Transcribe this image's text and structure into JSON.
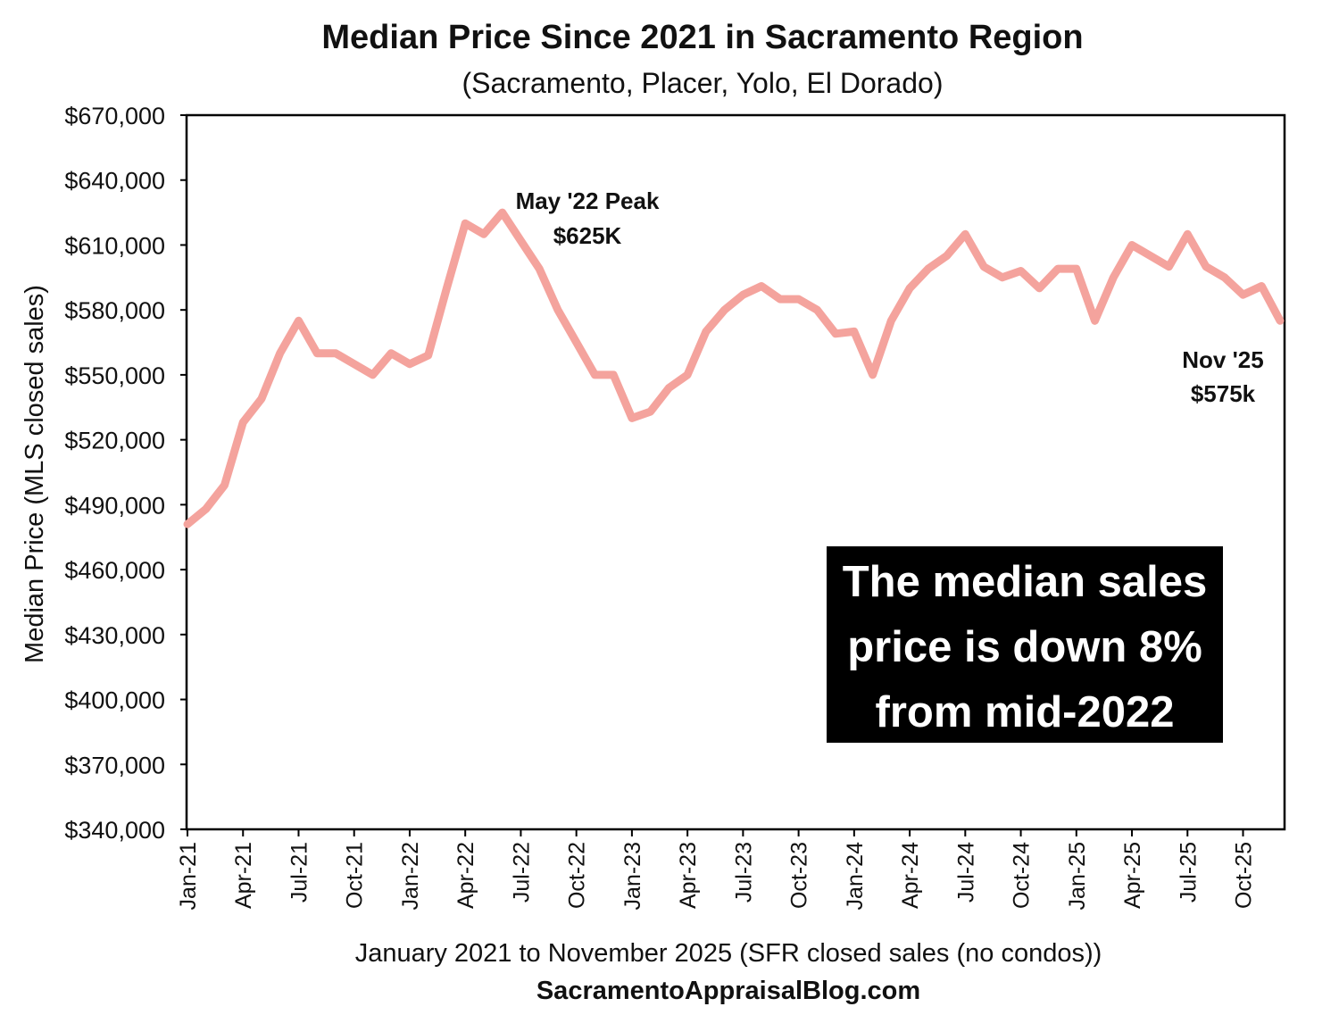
{
  "chart_data": {
    "type": "line",
    "title": "Median Price Since 2021 in Sacramento Region",
    "subtitle": "(Sacramento, Placer,  Yolo, El Dorado)",
    "ylabel": "Median Price (MLS closed sales)",
    "xlabel": "January 2021 to November 2025 (SFR closed sales (no condos))",
    "source": "SacramentoAppraisalBlog.com",
    "ylim": [
      340000,
      670000
    ],
    "y_ticks": [
      "$340,000",
      "$370,000",
      "$400,000",
      "$430,000",
      "$460,000",
      "$490,000",
      "$520,000",
      "$550,000",
      "$580,000",
      "$610,000",
      "$640,000",
      "$670,000"
    ],
    "x_tick_labels": [
      "Jan-21",
      "Apr-21",
      "Jul-21",
      "Oct-21",
      "Jan-22",
      "Apr-22",
      "Jul-22",
      "Oct-22",
      "Jan-23",
      "Apr-23",
      "Jul-23",
      "Oct-23",
      "Jan-24",
      "Apr-24",
      "Jul-24",
      "Oct-24",
      "Jan-25",
      "Apr-25",
      "Jul-25",
      "Oct-25"
    ],
    "grid": false,
    "legend": "none",
    "series": [
      {
        "name": "Median Price",
        "color": "#f4a39d",
        "values": [
          481000,
          488000,
          499000,
          528000,
          539000,
          560000,
          575000,
          560000,
          560000,
          555000,
          550000,
          560000,
          555000,
          559000,
          590000,
          620000,
          615000,
          625000,
          612000,
          599000,
          580000,
          565000,
          550000,
          550000,
          530000,
          533000,
          544000,
          550000,
          570000,
          580000,
          587000,
          591000,
          585000,
          585000,
          580000,
          569000,
          570000,
          550000,
          575000,
          590000,
          599000,
          605000,
          615000,
          600000,
          595000,
          598000,
          590000,
          599000,
          599000,
          575000,
          595000,
          610000,
          605000,
          600000,
          615000,
          600000,
          595000,
          587000,
          591000,
          575000
        ]
      }
    ],
    "annotations": [
      {
        "id": "peak",
        "lines": [
          "May '22 Peak",
          "$625K"
        ]
      },
      {
        "id": "latest",
        "lines": [
          "Nov '25",
          "$575k"
        ]
      }
    ],
    "callout_lines": [
      "The median sales",
      "price is down 8%",
      "from mid-2022"
    ],
    "colors": {
      "line": "#f4a39d",
      "callout_bg": "#000000",
      "callout_text": "#ffffff",
      "axis": "#000000"
    }
  }
}
